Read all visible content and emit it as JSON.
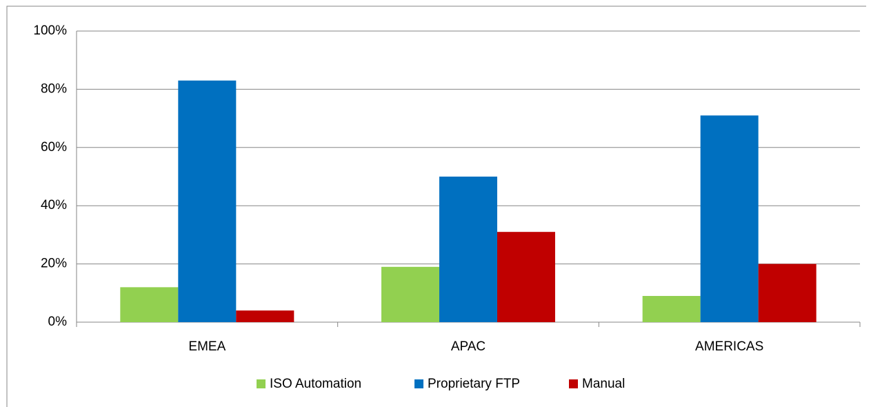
{
  "chart_data": {
    "type": "bar",
    "categories": [
      "EMEA",
      "APAC",
      "AMERICAS"
    ],
    "series": [
      {
        "name": "ISO Automation",
        "color": "#92d050",
        "values": [
          12,
          19,
          9
        ]
      },
      {
        "name": "Proprietary FTP",
        "color": "#0070c0",
        "values": [
          83,
          50,
          71
        ]
      },
      {
        "name": "Manual",
        "color": "#c00000",
        "values": [
          4,
          31,
          20
        ]
      }
    ],
    "ylim": [
      0,
      100
    ],
    "yticks": [
      {
        "value": 0,
        "label": "0%"
      },
      {
        "value": 20,
        "label": "20%"
      },
      {
        "value": 40,
        "label": "40%"
      },
      {
        "value": 60,
        "label": "60%"
      },
      {
        "value": 80,
        "label": "80%"
      },
      {
        "value": 100,
        "label": "100%"
      }
    ],
    "grid": true,
    "legend": "bottom"
  }
}
